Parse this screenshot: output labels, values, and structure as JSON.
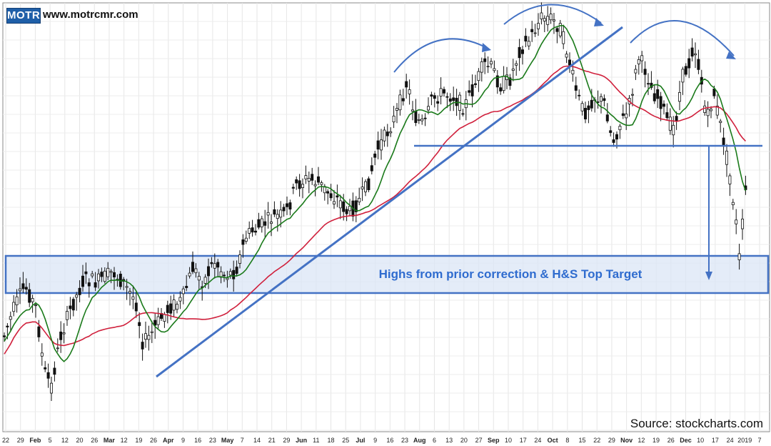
{
  "branding": {
    "logo_text": "MOTR",
    "site": "www.motrcmr.com"
  },
  "source": "Source: stockcharts.com",
  "chart_data": {
    "type": "candlestick",
    "title": "",
    "xlabel": "",
    "ylabel": "",
    "grid": true,
    "x_ticks": [
      "22",
      "29",
      "Feb",
      "5",
      "12",
      "20",
      "26",
      "Mar",
      "12",
      "19",
      "26",
      "Apr",
      "9",
      "16",
      "23",
      "May",
      "7",
      "14",
      "21",
      "29",
      "Jun",
      "11",
      "18",
      "25",
      "Jul",
      "9",
      "16",
      "23",
      "Aug",
      "6",
      "13",
      "20",
      "27",
      "Sep",
      "10",
      "17",
      "24",
      "Oct",
      "8",
      "15",
      "22",
      "29",
      "Nov",
      "12",
      "19",
      "26",
      "Dec",
      "10",
      "17",
      "24",
      "2019",
      "7"
    ],
    "overlays": [
      {
        "name": "",
        "color": "#1a7a1a"
      },
      {
        "name": "",
        "color": "#d0203c"
      }
    ],
    "annotations": {
      "band_label": "Highs from prior correction & H&S Top Target",
      "trendline": "uptrend line",
      "neckline": "head and shoulders neckline",
      "arcs": [
        "left shoulder",
        "head",
        "right shoulder"
      ]
    },
    "colors": {
      "annotation": "#4472c4",
      "band_fill": "#dbe5f6",
      "candle": "#111111"
    }
  }
}
